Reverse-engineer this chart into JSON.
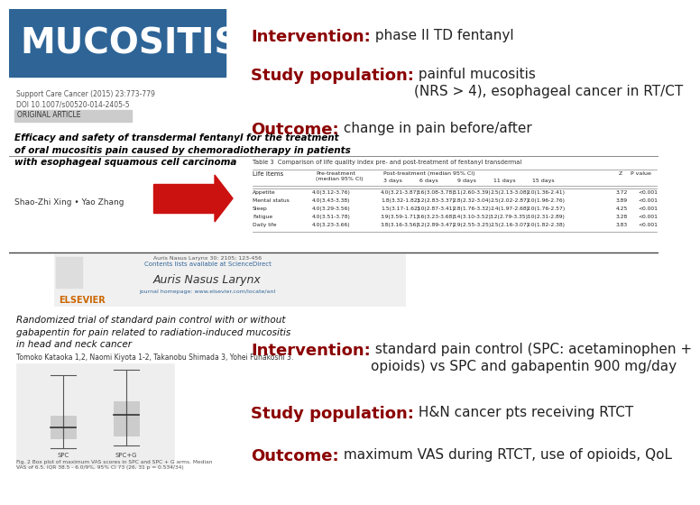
{
  "bg_color": "#ffffff",
  "header_bg": "#2e6496",
  "header_text": "MUCOSITIS",
  "header_text_color": "#ffffff",
  "section1_label": "Intervention:",
  "section1_text": " phase II TD fentanyl",
  "section2_label": "Study population:",
  "section2_text": " painful mucositis\n(NRS > 4), esophageal cancer in RT/CT",
  "section3_label": "Outcome:",
  "section3_text": " change in pain before/after",
  "section4_label": "Intervention:",
  "section4_text": " standard pain control (SPC: acetaminophen +\nopioids) vs SPC and gabapentin 900 mg/day",
  "section5_label": "Study population:",
  "section5_text": " H&N cancer pts receiving RTCT",
  "section6_label": "Outcome:",
  "section6_text": " maximum VAS during RTCT, use of opioids, QoL",
  "label_color": "#8b0000",
  "text_color": "#222222",
  "paper1_citation": "Support Care Cancer (2015) 23:773-779\nDOI 10.1007/s00520-014-2405-5",
  "paper1_title": "Efficacy and safety of transdermal fentanyl for the treatment\nof oral mucositis pain caused by chemoradiotherapy in patients\nwith esophageal squamous cell carcinoma",
  "paper1_authors": "Shao-Zhi Xing • Yao Zhang",
  "paper2_title": "Randomized trial of standard pain control with or without\ngabapentin for pain related to radiation-induced mucositis\nin head and neck cancer",
  "paper2_authors": "Tomoko Kataoka 1,2, Naomi Kiyota 1-2, Takanobu Shimada 3, Yohei Funakoshi 3.",
  "table_title": "Table 3  Comparison of life quality index pre- and post-treatment of fentanyl transdermal",
  "table_header1": "Life items",
  "table_header2": "Pre-treatment\n(median 95% CI)",
  "table_header3": "Post-treatment (median 95% CI)",
  "table_days": "3 days    6 days    9 days    11 days   15 days",
  "table_rows": [
    "Appetite      4.0(3.12-3.76)  4.0(3.21-3.87)  3.6(3.08-3.78)  3.1(2.60-3.39)  2.5(2.13-3.08)  2.0(1.36-2.41)  3.72  <0.001",
    "Mental status 4.0(3.43-3.38)  1.8(3.32-1.82)  3.2(2.83-3.37)  2.8(2.32-3.04)  2.5(2.02-2.87)  2.0(1.96-2.76)  3.89  <0.001",
    "Sleep         4.0(3.29-3.56)  1.5(3.17-1.62)  3.0(2.87-3.41)  2.8(1.76-3.32)  2.4(1.97-2.68)  2.0(1.76-2.57)  4.25  <0.001",
    "Fatigue       4.0(3.51-3.78)  3.9(3.59-1.71)  3.6(3.23-3.68)  3.4(3.10-3.52)  3.2(2.79-3.35)  3.0(2.31-2.89)  3.28  <0.001",
    "Daily life    4.0(3.23-3.66)  3.8(3.16-3.56)  3.2(2.89-3.47)  2.9(2.55-3.25)  2.5(2.16-3.07)  2.0(1.82-2.38)  3.83  <0.001"
  ]
}
